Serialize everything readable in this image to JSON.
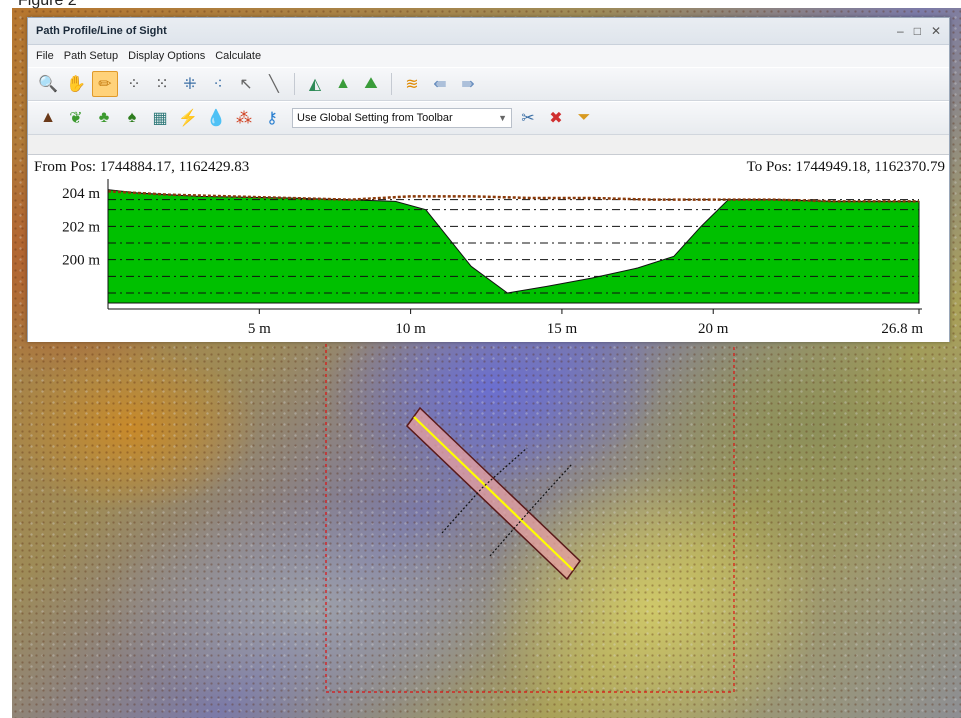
{
  "figure_caption": "Figure 2",
  "window": {
    "title": "Path Profile/Line of Sight",
    "controls": {
      "minimize": "–",
      "maximize": "□",
      "close": "✕"
    }
  },
  "menu": [
    "File",
    "Path Setup",
    "Display Options",
    "Calculate"
  ],
  "toolbar1": [
    {
      "icon": "zoom-in-icon",
      "glyph": "🔍",
      "color": "#1d6fb8"
    },
    {
      "icon": "pan-hand-icon",
      "glyph": "✋",
      "color": "#d58a1a"
    },
    {
      "icon": "draw-path-icon",
      "glyph": "✏",
      "color": "#c57b10",
      "active": true
    },
    {
      "icon": "points-grid-icon",
      "glyph": "⁘",
      "color": "#4a4a4a"
    },
    {
      "icon": "select-points-icon",
      "glyph": "⁙",
      "color": "#4a4a4a"
    },
    {
      "icon": "point-line-icon",
      "glyph": "⁜",
      "color": "#3a6ea5"
    },
    {
      "icon": "point-split-icon",
      "glyph": "⁖",
      "color": "#3a6ea5"
    },
    {
      "icon": "select-arrow-icon",
      "glyph": "↖",
      "color": "#666"
    },
    {
      "icon": "measure-line-icon",
      "glyph": "╲",
      "color": "#666"
    },
    {
      "icon": "profile-view-icon",
      "glyph": "◭",
      "color": "#2e8b57"
    },
    {
      "icon": "terrain-view-icon",
      "glyph": "▲",
      "color": "#3a9c3a"
    },
    {
      "icon": "terrain-zoom-icon",
      "glyph": "⛰",
      "color": "#3a9c3a"
    },
    {
      "icon": "graph-icon",
      "glyph": "≋",
      "color": "#e08a00"
    },
    {
      "icon": "arrow-left-icon",
      "glyph": "⇚",
      "color": "#6a8fbf"
    },
    {
      "icon": "arrow-right-icon",
      "glyph": "⇛",
      "color": "#6a8fbf"
    }
  ],
  "toolbar2": [
    {
      "icon": "ground-icon",
      "glyph": "▲",
      "color": "#6b3a1a"
    },
    {
      "icon": "low-vegetation-icon",
      "glyph": "❦",
      "color": "#3c9a2f"
    },
    {
      "icon": "medium-vegetation-icon",
      "glyph": "♣",
      "color": "#3c9a2f"
    },
    {
      "icon": "high-vegetation-icon",
      "glyph": "♠",
      "color": "#2e7d1e"
    },
    {
      "icon": "building-icon",
      "glyph": "▦",
      "color": "#2f7a7a"
    },
    {
      "icon": "power-line-icon",
      "glyph": "⚡",
      "color": "#d0a020"
    },
    {
      "icon": "water-icon",
      "glyph": "💧",
      "color": "#2a7fd0"
    },
    {
      "icon": "noise-points-icon",
      "glyph": "⁂",
      "color": "#d04020"
    },
    {
      "icon": "key-point-icon",
      "glyph": "⚷",
      "color": "#2a7fd0"
    }
  ],
  "display_setting": "Use Global Setting from Toolbar",
  "toolbar2_right": [
    {
      "icon": "settings-tools-icon",
      "glyph": "✂",
      "color": "#3a6ea5"
    },
    {
      "icon": "clear-icon",
      "glyph": "✖",
      "color": "#d03030"
    },
    {
      "icon": "filter-icon",
      "glyph": "⏷",
      "color": "#d89a20"
    }
  ],
  "profile": {
    "from_pos": "From Pos: 1744884.17, 1162429.83",
    "to_pos": "To Pos: 1744949.18, 1162370.79"
  },
  "chart_data": {
    "type": "area",
    "y_tick_labels": [
      "204 m",
      "202 m",
      "200 m"
    ],
    "y_ticks": [
      204,
      202,
      200
    ],
    "x_tick_labels": [
      "5 m",
      "10 m",
      "15 m",
      "20 m",
      "26.8 m"
    ],
    "x_ticks": [
      5,
      10,
      15,
      20,
      26.8
    ],
    "xlim": [
      0,
      26.8
    ],
    "ylim": [
      197.4,
      204.6
    ],
    "grid": "dashed horizontal",
    "fill_color": "#00c000",
    "point_color": "#8b3a0a",
    "ground_profile": {
      "x": [
        0,
        1,
        3,
        6,
        9.5,
        10.5,
        12,
        13.2,
        14.5,
        16,
        17.5,
        18.7,
        19.6,
        20.5,
        22,
        24,
        26.8
      ],
      "y": [
        204.2,
        204.0,
        203.8,
        203.7,
        203.5,
        203.0,
        199.6,
        198.0,
        198.4,
        198.9,
        199.5,
        200.2,
        202.0,
        203.6,
        203.6,
        203.5,
        203.5
      ]
    },
    "point_cloud": {
      "x": [
        0,
        2,
        4,
        6,
        8,
        10,
        12,
        14,
        16,
        18,
        20,
        22,
        24,
        26.8
      ],
      "y": [
        204.1,
        203.9,
        203.8,
        203.7,
        203.6,
        203.8,
        203.8,
        203.7,
        203.7,
        203.6,
        203.6,
        203.6,
        203.5,
        203.5
      ]
    }
  }
}
